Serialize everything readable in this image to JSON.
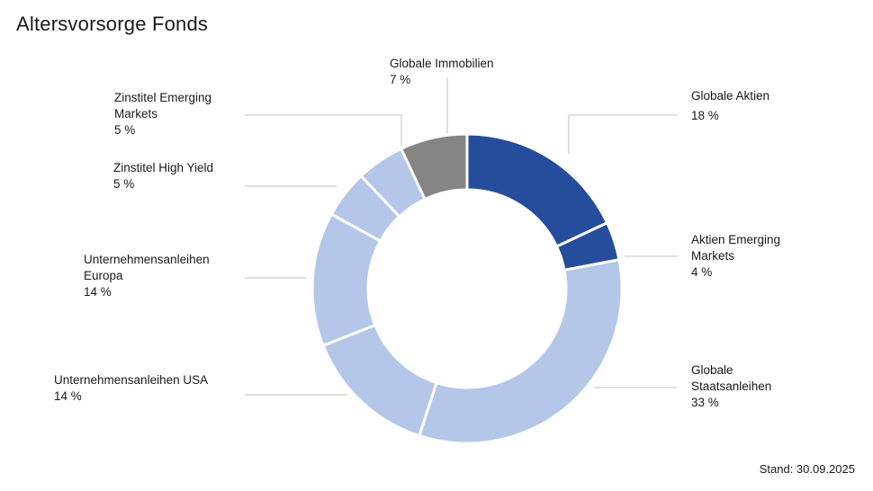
{
  "title": "Altersvorsorge Fonds",
  "stand": "Stand: 30.09.2025",
  "chart_data": {
    "type": "pie",
    "donut": true,
    "title": "Altersvorsorge Fonds",
    "unit": "%",
    "slices": [
      {
        "key": "globale_aktien",
        "label_lines": [
          "Globale Aktien",
          "18 %"
        ],
        "value": 18,
        "color": "#264d9b"
      },
      {
        "key": "aktien_em",
        "label_lines": [
          "Aktien Emerging",
          "Markets",
          "4 %"
        ],
        "value": 4,
        "color": "#264d9b"
      },
      {
        "key": "globale_staatsanleihen",
        "label_lines": [
          "Globale",
          "Staatsanleihen",
          "33 %"
        ],
        "value": 33,
        "color": "#b4c7e9"
      },
      {
        "key": "unternehmensanleihen_usa",
        "label_lines": [
          "Unternehmensanleihen USA",
          "14 %"
        ],
        "value": 14,
        "color": "#b4c7e9"
      },
      {
        "key": "unternehmensanleihen_europa",
        "label_lines": [
          "Unternehmensanleihen",
          "Europa",
          "14 %"
        ],
        "value": 14,
        "color": "#b4c7e9"
      },
      {
        "key": "zinstitel_high_yield",
        "label_lines": [
          "Zinstitel High Yield",
          "5 %"
        ],
        "value": 5,
        "color": "#b4c7e9"
      },
      {
        "key": "zinstitel_em",
        "label_lines": [
          "Zinstitel Emerging",
          "Markets",
          "5 %"
        ],
        "value": 5,
        "color": "#b4c7e9"
      },
      {
        "key": "globale_immobilien",
        "label_lines": [
          "Globale Immobilien",
          "7 %"
        ],
        "value": 7,
        "color": "#858585"
      }
    ]
  }
}
